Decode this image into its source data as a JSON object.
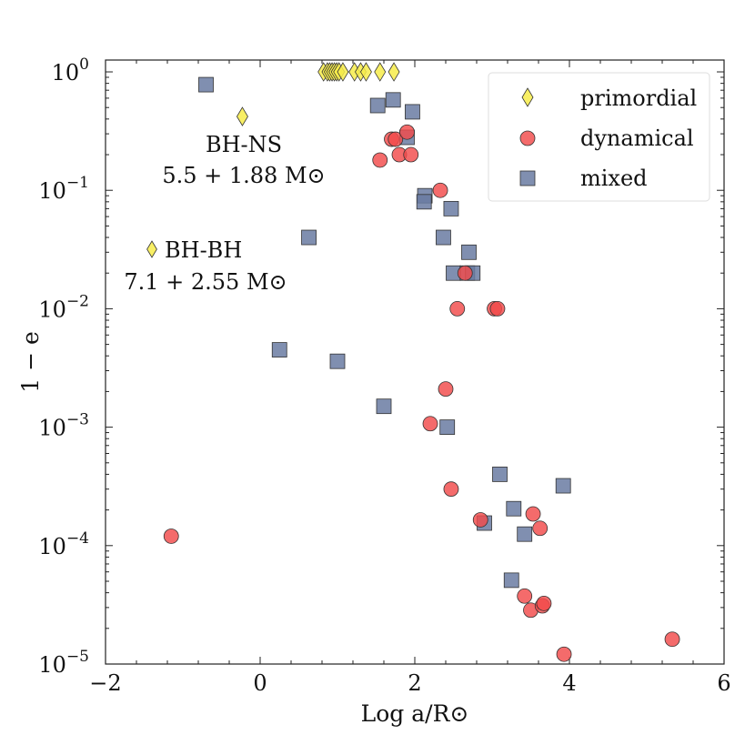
{
  "chart_data": {
    "type": "scatter",
    "xlabel": "Log a/R⊙",
    "ylabel": "1 − e",
    "xlim": [
      -2,
      6
    ],
    "ylim_log10": [
      -5,
      0.1
    ],
    "x_ticks": [
      -2,
      0,
      2,
      4,
      6
    ],
    "x_tick_labels": [
      "−2",
      "0",
      "2",
      "4",
      "6"
    ],
    "y_ticks": [
      -5,
      -4,
      -3,
      -2,
      -1,
      0
    ],
    "y_tick_labels": [
      {
        "base": "10",
        "exp": "−5"
      },
      {
        "base": "10",
        "exp": "−4"
      },
      {
        "base": "10",
        "exp": "−3"
      },
      {
        "base": "10",
        "exp": "−2"
      },
      {
        "base": "10",
        "exp": "−1"
      },
      {
        "base": "10",
        "exp": "0"
      }
    ],
    "grid": false,
    "legend_position": "top-right",
    "series": [
      {
        "name": "primordial",
        "marker": "diamond",
        "color": "#f7ec4a",
        "points": [
          [
            0.82,
            1.0
          ],
          [
            0.87,
            1.0
          ],
          [
            0.9,
            1.0
          ],
          [
            0.93,
            1.0
          ],
          [
            0.96,
            1.0
          ],
          [
            0.99,
            1.0
          ],
          [
            1.02,
            1.0
          ],
          [
            1.07,
            1.0
          ],
          [
            1.22,
            1.0
          ],
          [
            1.3,
            1.0
          ],
          [
            1.37,
            1.0
          ],
          [
            1.55,
            1.0
          ],
          [
            1.73,
            1.0
          ],
          [
            -0.23,
            0.42
          ]
        ]
      },
      {
        "name": "dynamical",
        "marker": "circle",
        "color": "#f24a4a",
        "points": [
          [
            1.7,
            0.27
          ],
          [
            1.75,
            0.27
          ],
          [
            1.9,
            0.31
          ],
          [
            1.8,
            0.2
          ],
          [
            1.95,
            0.2
          ],
          [
            1.55,
            0.18
          ],
          [
            2.33,
            0.1
          ],
          [
            2.65,
            0.02
          ],
          [
            2.55,
            0.01
          ],
          [
            3.03,
            0.01
          ],
          [
            3.07,
            0.01
          ],
          [
            2.4,
            0.0021
          ],
          [
            2.2,
            0.00107
          ],
          [
            2.47,
            0.0003
          ],
          [
            2.85,
            0.000165
          ],
          [
            3.53,
            0.000185
          ],
          [
            3.62,
            0.00014
          ],
          [
            -1.15,
            0.00012
          ],
          [
            3.42,
            3.75e-05
          ],
          [
            3.5,
            2.85e-05
          ],
          [
            3.65,
            3.1e-05
          ],
          [
            3.67,
            3.25e-05
          ],
          [
            3.93,
            1.21e-05
          ],
          [
            5.33,
            1.62e-05
          ]
        ]
      },
      {
        "name": "mixed",
        "marker": "square",
        "color": "#6a7ba2",
        "points": [
          [
            -0.7,
            0.78
          ],
          [
            1.72,
            0.58
          ],
          [
            1.52,
            0.52
          ],
          [
            1.97,
            0.46
          ],
          [
            1.9,
            0.28
          ],
          [
            2.13,
            0.09
          ],
          [
            2.12,
            0.08
          ],
          [
            2.47,
            0.07
          ],
          [
            0.63,
            0.04
          ],
          [
            2.37,
            0.04
          ],
          [
            2.7,
            0.03
          ],
          [
            2.5,
            0.02
          ],
          [
            2.68,
            0.02
          ],
          [
            2.75,
            0.02
          ],
          [
            0.25,
            0.0045
          ],
          [
            1.0,
            0.0036
          ],
          [
            1.6,
            0.0015
          ],
          [
            2.42,
            0.001
          ],
          [
            3.1,
            0.0004
          ],
          [
            3.92,
            0.00032
          ],
          [
            3.28,
            0.000205
          ],
          [
            2.9,
            0.000155
          ],
          [
            3.42,
            0.000125
          ],
          [
            3.25,
            5.1e-05
          ]
        ]
      }
    ],
    "annotations": [
      {
        "name": "bh-ns",
        "line1": "BH-NS",
        "line2": "5.5 + 1.88 M⊙"
      },
      {
        "name": "bh-bh",
        "line1": "BH-BH",
        "line2": "7.1 + 2.55 M⊙"
      }
    ]
  }
}
